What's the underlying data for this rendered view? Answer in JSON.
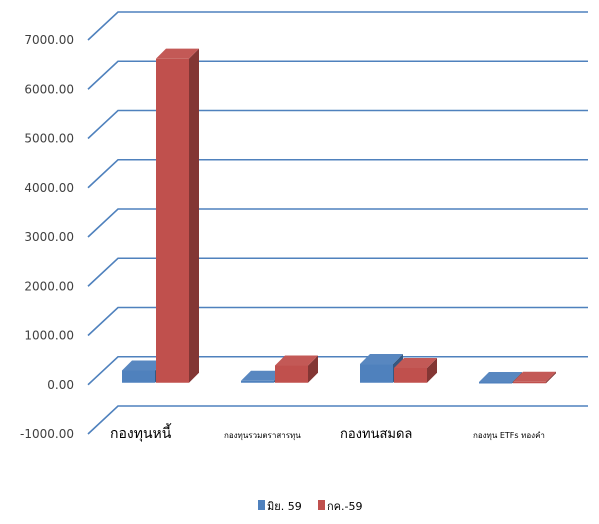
{
  "chart_data": {
    "type": "bar",
    "title": "",
    "xlabel": "",
    "ylabel": "",
    "categories": [
      "กองทุนหนี้",
      "กองทุนรวมตราสารทุน",
      "กองทนสมดล",
      "กองทุน ETFs ทองคำ"
    ],
    "series": [
      {
        "name": "มิย. 59",
        "color": "#4f81bd",
        "values": [
          250,
          40,
          380,
          15
        ]
      },
      {
        "name": "กค.-59",
        "color": "#c0504d",
        "values": [
          6580,
          350,
          300,
          20
        ]
      }
    ],
    "ylim": [
      -1000,
      7000
    ],
    "yticks": [
      "7000.00",
      "6000.00",
      "5000.00",
      "4000.00",
      "3000.00",
      "2000.00",
      "1000.00",
      "0.00",
      "-1000.00"
    ],
    "grid": true,
    "legend_position": "bottom"
  }
}
